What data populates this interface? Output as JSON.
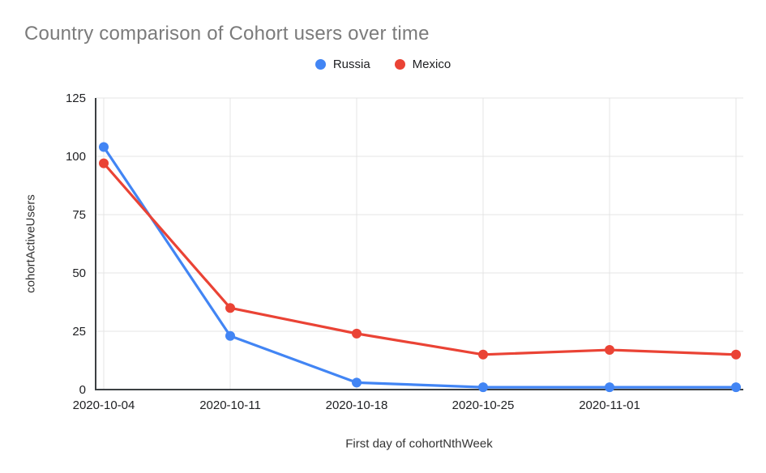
{
  "chart_data": {
    "type": "line",
    "title": "Country comparison of Cohort users over time",
    "xlabel": "First day of cohortNthWeek",
    "ylabel": "cohortActiveUsers",
    "categories": [
      "2020-10-04",
      "2020-10-11",
      "2020-10-18",
      "2020-10-25",
      "2020-11-01",
      ""
    ],
    "series": [
      {
        "name": "Russia",
        "color": "#4285F4",
        "values": [
          104,
          23,
          3,
          1,
          1,
          1
        ]
      },
      {
        "name": "Mexico",
        "color": "#EA4335",
        "values": [
          97,
          35,
          24,
          15,
          17,
          15
        ]
      }
    ],
    "ylim": [
      0,
      125
    ],
    "y_ticks": [
      0,
      25,
      50,
      75,
      100,
      125
    ],
    "grid": true,
    "legend_position": "top-center",
    "colors": {
      "title_text": "#7b7b7b",
      "axis_text": "#202124",
      "axis_title_text": "#333333",
      "gridline": "#e4e4e4",
      "axis_line": "#3c4043",
      "background": "#ffffff"
    }
  }
}
